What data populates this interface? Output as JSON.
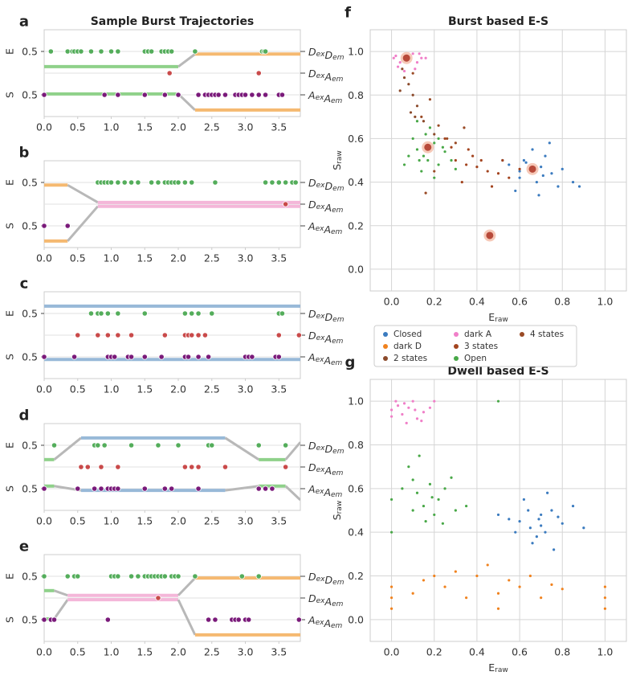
{
  "chart_data": [
    {
      "type": "trajectory",
      "letter": "a",
      "title": "Sample Burst Trajectories",
      "xlim": [
        0,
        3.82
      ],
      "xticks": [
        {
          "value": 0,
          "label": "0.0"
        },
        0.5,
        {
          "value": 1,
          "label": "1.0"
        },
        1.5,
        {
          "value": 2,
          "label": "2.0"
        },
        2.5,
        {
          "value": 3,
          "label": "3.0"
        },
        3.5
      ],
      "e_label": "E",
      "s_label": "S",
      "e_ylim": [
        0,
        1
      ],
      "s_ylim": [
        0,
        1
      ],
      "e_yticks": [
        0.5
      ],
      "s_yticks": [
        0.5
      ],
      "states": [
        {
          "x": [
            0,
            2.0
          ],
          "E": 0.15,
          "S": 0.52,
          "color": "#8fd18a"
        },
        {
          "x": [
            2.25,
            3.82
          ],
          "E": 0.44,
          "S": 0.15,
          "color": "#f5b971"
        }
      ],
      "channels": [
        {
          "label": "DexDem",
          "color": "#54ad5b",
          "x": [
            0.1,
            0.35,
            0.42,
            0.45,
            0.5,
            0.55,
            0.7,
            0.85,
            1.0,
            1.1,
            1.5,
            1.55,
            1.6,
            1.75,
            1.8,
            1.85,
            1.9,
            2.25,
            3.25,
            3.28,
            3.3
          ]
        },
        {
          "label": "DexAem",
          "color": "#c94a4a",
          "x": [
            1.87,
            3.2
          ]
        },
        {
          "label": "AexAem",
          "color": "#7a1a7a",
          "x": [
            0,
            0.9,
            1.1,
            1.5,
            1.8,
            2.0,
            2.3,
            2.4,
            2.45,
            2.5,
            2.55,
            2.6,
            2.7,
            2.85,
            2.9,
            2.95,
            3.0,
            3.1,
            3.2,
            3.3,
            3.5,
            3.55
          ]
        }
      ]
    },
    {
      "type": "trajectory",
      "letter": "b",
      "xlim": [
        0,
        3.82
      ],
      "xticks": [
        {
          "value": 0,
          "label": "0.0"
        },
        0.5,
        {
          "value": 1,
          "label": "1.0"
        },
        1.5,
        {
          "value": 2,
          "label": "2.0"
        },
        2.5,
        {
          "value": 3,
          "label": "3.0"
        },
        3.5
      ],
      "e_label": "E",
      "s_label": "S",
      "e_ylim": [
        0,
        1
      ],
      "s_ylim": [
        0,
        1
      ],
      "e_yticks": [
        0.5
      ],
      "s_yticks": [
        0.5
      ],
      "states": [
        {
          "x": [
            0,
            0.35
          ],
          "E": 0.44,
          "S": 0.15,
          "color": "#f5b971"
        },
        {
          "x": [
            0.8,
            3.82
          ],
          "E": 0.04,
          "S": 0.95,
          "color": "#f4b6d9"
        }
      ],
      "channels": [
        {
          "label": "DexDem",
          "color": "#54ad5b",
          "x": [
            0.8,
            0.85,
            0.9,
            0.95,
            1.0,
            1.1,
            1.2,
            1.3,
            1.4,
            1.6,
            1.7,
            1.8,
            1.85,
            1.9,
            1.95,
            2.0,
            2.1,
            2.2,
            2.55,
            3.3,
            3.4,
            3.5,
            3.6,
            3.7,
            3.75
          ]
        },
        {
          "label": "DexAem",
          "color": "#c94a4a",
          "x": [
            3.6
          ]
        },
        {
          "label": "AexAem",
          "color": "#7a1a7a",
          "x": [
            0,
            0.35
          ]
        }
      ]
    },
    {
      "type": "trajectory",
      "letter": "c",
      "xlim": [
        0,
        3.82
      ],
      "xticks": [
        {
          "value": 0,
          "label": "0.0"
        },
        0.5,
        {
          "value": 1,
          "label": "1.0"
        },
        1.5,
        {
          "value": 2,
          "label": "2.0"
        },
        2.5,
        {
          "value": 3,
          "label": "3.0"
        },
        3.5
      ],
      "e_label": "E",
      "s_label": "S",
      "e_ylim": [
        0,
        1
      ],
      "s_ylim": [
        0,
        1
      ],
      "e_yticks": [
        0.5
      ],
      "s_yticks": [
        0.5
      ],
      "states": [
        {
          "x": [
            0,
            3.82
          ],
          "E": 0.67,
          "S": 0.44,
          "color": "#98b9d8"
        }
      ],
      "channels": [
        {
          "label": "DexDem",
          "color": "#54ad5b",
          "x": [
            0.7,
            0.8,
            0.85,
            0.95,
            1.1,
            1.5,
            2.1,
            2.2,
            2.3,
            2.5,
            3.5,
            3.55
          ]
        },
        {
          "label": "DexAem",
          "color": "#c94a4a",
          "x": [
            0.5,
            0.8,
            0.95,
            1.1,
            1.3,
            1.8,
            2.1,
            2.15,
            2.2,
            2.3,
            2.4,
            3.5,
            3.8
          ]
        },
        {
          "label": "AexAem",
          "color": "#7a1a7a",
          "x": [
            0,
            0.45,
            0.95,
            1.0,
            1.05,
            1.25,
            1.3,
            1.5,
            1.75,
            2.1,
            2.15,
            2.3,
            2.45,
            3.0,
            3.05,
            3.1,
            3.45,
            3.5
          ]
        }
      ]
    },
    {
      "type": "trajectory",
      "letter": "d",
      "xlim": [
        0,
        3.82
      ],
      "xticks": [
        {
          "value": 0,
          "label": "0.0"
        },
        0.5,
        {
          "value": 1,
          "label": "1.0"
        },
        1.5,
        {
          "value": 2,
          "label": "2.0"
        },
        2.5,
        {
          "value": 3,
          "label": "3.0"
        },
        3.5
      ],
      "e_label": "E",
      "s_label": "S",
      "e_ylim": [
        0,
        1
      ],
      "s_ylim": [
        0,
        1
      ],
      "e_yticks": [
        0.5
      ],
      "s_yticks": [
        0.5
      ],
      "states": [
        {
          "x": [
            0,
            0.15
          ],
          "E": 0.17,
          "S": 0.56,
          "color": "#8fd18a"
        },
        {
          "x": [
            0.55,
            2.7
          ],
          "E": 0.67,
          "S": 0.46,
          "color": "#98b9d8"
        },
        {
          "x": [
            3.2,
            3.6
          ],
          "E": 0.17,
          "S": 0.56,
          "color": "#8fd18a"
        },
        {
          "x": [
            3.82,
            3.82
          ],
          "E": 0.57,
          "S": 0.24,
          "color": "#b8b8b8"
        }
      ],
      "channels": [
        {
          "label": "DexDem",
          "color": "#54ad5b",
          "x": [
            0.15,
            0.75,
            0.8,
            0.9,
            1.3,
            1.7,
            2.0,
            2.45,
            2.5,
            3.2,
            3.6
          ]
        },
        {
          "label": "DexAem",
          "color": "#c94a4a",
          "x": [
            0.55,
            0.65,
            0.85,
            1.1,
            2.1,
            2.2,
            2.3,
            2.7,
            3.6
          ]
        },
        {
          "label": "AexAem",
          "color": "#7a1a7a",
          "x": [
            0,
            0.5,
            0.75,
            0.85,
            0.95,
            1.0,
            1.05,
            1.1,
            1.5,
            1.8,
            1.9,
            2.3,
            3.2,
            3.3,
            3.4
          ]
        }
      ]
    },
    {
      "type": "trajectory",
      "letter": "e",
      "xlim": [
        0,
        3.82
      ],
      "xticks": [
        {
          "value": 0,
          "label": "0.0"
        },
        0.5,
        {
          "value": 1,
          "label": "1.0"
        },
        1.5,
        {
          "value": 2,
          "label": "2.0"
        },
        2.5,
        {
          "value": 3,
          "label": "3.0"
        },
        3.5
      ],
      "e_label": "E",
      "s_label": "S",
      "e_ylim": [
        0,
        1
      ],
      "s_ylim": [
        0,
        1
      ],
      "e_yticks": [
        0.5
      ],
      "s_yticks": [
        0.5
      ],
      "states": [
        {
          "x": [
            0,
            0.15
          ],
          "E": 0.17,
          "S": 0.52,
          "color": "#8fd18a"
        },
        {
          "x": [
            0.35,
            2.0
          ],
          "E": 0.06,
          "S": 0.96,
          "color": "#f4b6d9"
        },
        {
          "x": [
            2.25,
            3.82
          ],
          "E": 0.46,
          "S": 0.15,
          "color": "#f5b971"
        }
      ],
      "channels": [
        {
          "label": "DexDem",
          "color": "#54ad5b",
          "x": [
            0,
            0.35,
            0.45,
            0.5,
            1.0,
            1.05,
            1.1,
            1.3,
            1.4,
            1.5,
            1.55,
            1.6,
            1.65,
            1.7,
            1.75,
            1.8,
            1.9,
            1.95,
            2.0,
            2.25,
            2.95,
            3.2
          ]
        },
        {
          "label": "DexAem",
          "color": "#c94a4a",
          "x": [
            1.7
          ]
        },
        {
          "label": "AexAem",
          "color": "#7a1a7a",
          "x": [
            0,
            0.1,
            0.15,
            0.95,
            2.45,
            2.55,
            2.8,
            2.85,
            2.9,
            3.0,
            3.05,
            3.8
          ]
        }
      ]
    },
    {
      "type": "scatter",
      "letter": "f",
      "title": "Burst based E-S",
      "xlabel": "Eraw",
      "ylabel": "Sraw",
      "grid": true,
      "xlim": [
        -0.1,
        1.1
      ],
      "ylim": [
        -0.1,
        1.1
      ],
      "xticks": [
        {
          "value": 0,
          "label": "0.0"
        },
        0.2,
        0.4,
        0.6,
        0.8,
        {
          "value": 1,
          "label": "1.0"
        }
      ],
      "yticks": [
        {
          "value": 0,
          "label": "0.0"
        },
        0.2,
        0.4,
        0.6,
        0.8,
        {
          "value": 1,
          "label": "1.0"
        }
      ],
      "series": [
        {
          "name": "Closed",
          "color": "#3b7bbf",
          "x": [
            0.55,
            0.6,
            0.62,
            0.65,
            0.68,
            0.7,
            0.72,
            0.75,
            0.78,
            0.8,
            0.58,
            0.66,
            0.71,
            0.63,
            0.85,
            0.52,
            0.74,
            0.69,
            0.6,
            0.88
          ],
          "y": [
            0.48,
            0.42,
            0.5,
            0.45,
            0.4,
            0.47,
            0.52,
            0.44,
            0.38,
            0.46,
            0.36,
            0.55,
            0.43,
            0.49,
            0.4,
            0.5,
            0.58,
            0.34,
            0.45,
            0.38
          ]
        },
        {
          "name": "dark A",
          "color": "#f07fc8",
          "x": [
            0.02,
            0.05,
            0.07,
            0.1,
            0.12,
            0.03,
            0.08,
            0.14,
            0.06,
            0.01,
            0.11,
            0.09,
            0.04,
            0.13,
            0.16
          ],
          "y": [
            0.98,
            0.96,
            0.97,
            0.99,
            0.95,
            0.93,
            0.99,
            0.97,
            0.91,
            0.97,
            0.92,
            0.98,
            0.95,
            0.99,
            0.97
          ]
        },
        {
          "name": "Open",
          "color": "#48a847",
          "x": [
            0.1,
            0.12,
            0.15,
            0.17,
            0.2,
            0.22,
            0.25,
            0.18,
            0.14,
            0.08,
            0.28,
            0.2,
            0.16,
            0.24,
            0.12,
            0.3,
            0.19,
            0.06,
            0.22,
            0.13
          ],
          "y": [
            0.6,
            0.55,
            0.52,
            0.5,
            0.58,
            0.48,
            0.54,
            0.65,
            0.45,
            0.52,
            0.5,
            0.42,
            0.62,
            0.56,
            0.68,
            0.46,
            0.57,
            0.48,
            0.6,
            0.5
          ]
        },
        {
          "name": "2 states",
          "color": "#8b4a2b",
          "x": [
            0.05,
            0.08,
            0.1,
            0.12,
            0.06,
            0.15,
            0.09,
            0.2,
            0.04,
            0.11
          ],
          "y": [
            0.92,
            0.85,
            0.8,
            0.75,
            0.88,
            0.68,
            0.72,
            0.62,
            0.82,
            0.7
          ]
        },
        {
          "name": "3 states",
          "color": "#a3441f",
          "x": [
            0.3,
            0.35,
            0.4,
            0.45,
            0.5,
            0.38,
            0.28,
            0.55,
            0.42,
            0.33,
            0.6,
            0.25,
            0.47,
            0.36,
            0.52
          ],
          "y": [
            0.5,
            0.48,
            0.47,
            0.45,
            0.44,
            0.52,
            0.56,
            0.42,
            0.5,
            0.4,
            0.46,
            0.6,
            0.38,
            0.55,
            0.5
          ]
        },
        {
          "name": "4 states",
          "color": "#9a4a25",
          "x": [
            0.1,
            0.18,
            0.22,
            0.26,
            0.14,
            0.3,
            0.07,
            0.2,
            0.34,
            0.16
          ],
          "y": [
            0.9,
            0.78,
            0.66,
            0.6,
            0.7,
            0.58,
            0.95,
            0.45,
            0.65,
            0.35
          ]
        }
      ],
      "centers": {
        "x": [
          0.07,
          0.17,
          0.66,
          0.46
        ],
        "y": [
          0.97,
          0.56,
          0.46,
          0.155
        ]
      }
    },
    {
      "type": "scatter",
      "letter": "g",
      "title": "Dwell based E-S",
      "xlabel": "Eraw",
      "ylabel": "Sraw",
      "grid": true,
      "xlim": [
        -0.1,
        1.1
      ],
      "ylim": [
        -0.1,
        1.1
      ],
      "xticks": [
        {
          "value": 0,
          "label": "0.0"
        },
        0.2,
        0.4,
        0.6,
        0.8,
        {
          "value": 1,
          "label": "1.0"
        }
      ],
      "yticks": [
        {
          "value": 0,
          "label": "0.0"
        },
        0.2,
        0.4,
        0.6,
        0.8,
        {
          "value": 1,
          "label": "1.0"
        }
      ],
      "series": [
        {
          "name": "Closed",
          "color": "#3b7bbf",
          "x": [
            0.6,
            0.65,
            0.7,
            0.72,
            0.75,
            0.68,
            0.62,
            0.8,
            0.55,
            0.85,
            0.66,
            0.73,
            0.58,
            0.78,
            0.7,
            0.64,
            0.9,
            0.5,
            0.76,
            0.69
          ],
          "y": [
            0.45,
            0.42,
            0.48,
            0.4,
            0.5,
            0.38,
            0.55,
            0.44,
            0.46,
            0.52,
            0.35,
            0.58,
            0.4,
            0.47,
            0.43,
            0.5,
            0.42,
            0.48,
            0.32,
            0.46
          ]
        },
        {
          "name": "dark D",
          "color": "#f0821e",
          "x": [
            0,
            0,
            0,
            0.1,
            0.15,
            0.2,
            0.25,
            0.3,
            0.35,
            0.4,
            0.45,
            0.5,
            0.5,
            0.55,
            0.6,
            0.65,
            0.7,
            0.75,
            0.8,
            1,
            1,
            1
          ],
          "y": [
            0.05,
            0.1,
            0.15,
            0.12,
            0.18,
            0.2,
            0.15,
            0.22,
            0.1,
            0.2,
            0.25,
            0.12,
            0.05,
            0.18,
            0.15,
            0.2,
            0.1,
            0.16,
            0.14,
            0.05,
            0.1,
            0.15
          ]
        },
        {
          "name": "dark A",
          "color": "#f07fc8",
          "x": [
            0,
            0.02,
            0.05,
            0.08,
            0.1,
            0.12,
            0.15,
            0.03,
            0.07,
            0.18,
            0,
            0.2,
            0.11,
            0.06,
            0.14
          ],
          "y": [
            0.96,
            1,
            0.94,
            0.97,
            1,
            0.92,
            0.95,
            0.98,
            0.9,
            0.97,
            0.93,
            1,
            0.96,
            0.99,
            0.91
          ]
        },
        {
          "name": "Open",
          "color": "#48a847",
          "x": [
            0,
            0.05,
            0.1,
            0.12,
            0.15,
            0.18,
            0.2,
            0.22,
            0.25,
            0.3,
            0.08,
            0.16,
            0.28,
            0.35,
            0,
            0.13,
            0.19,
            0.24,
            0.1,
            0.5
          ],
          "y": [
            0.55,
            0.6,
            0.5,
            0.58,
            0.52,
            0.62,
            0.48,
            0.55,
            0.6,
            0.5,
            0.7,
            0.45,
            0.65,
            0.52,
            0.4,
            0.75,
            0.56,
            0.44,
            0.64,
            1
          ]
        }
      ]
    }
  ],
  "legend": {
    "entries": [
      {
        "name": "Closed",
        "color": "#3b7bbf"
      },
      {
        "name": "dark D",
        "color": "#f0821e"
      },
      {
        "name": "2 states",
        "color": "#8b4a2b"
      },
      {
        "name": "dark A",
        "color": "#f07fc8"
      },
      {
        "name": "3 states",
        "color": "#a3441f"
      },
      {
        "name": "Open",
        "color": "#48a847"
      },
      {
        "name": "4 states",
        "color": "#9a4a25"
      }
    ]
  }
}
